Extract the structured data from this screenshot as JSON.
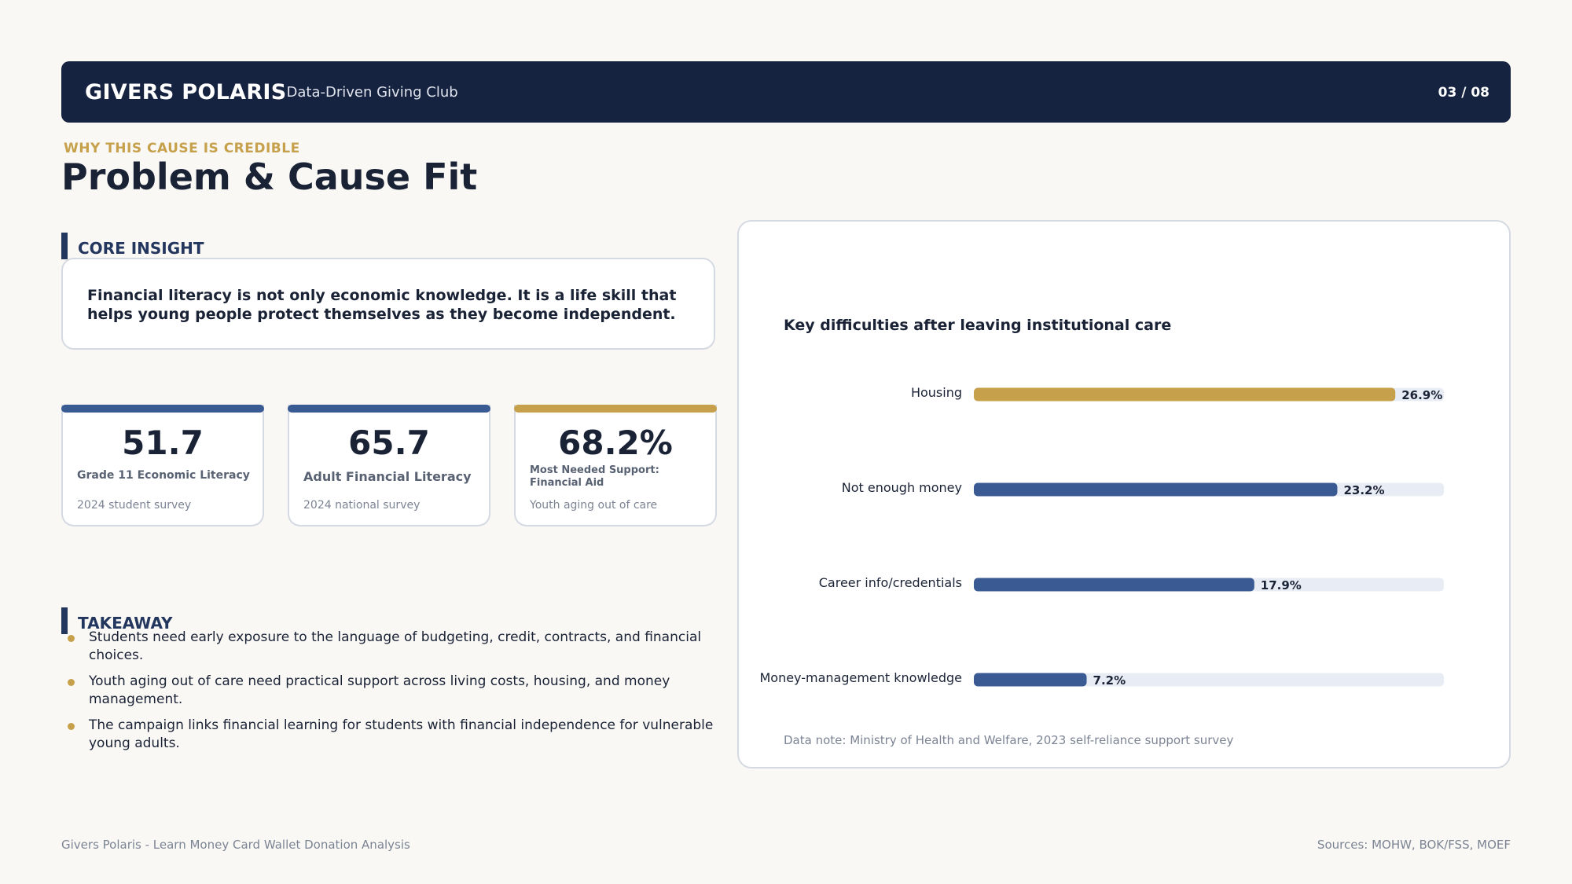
{
  "header": {
    "brand": "GIVERS POLARIS",
    "club": "Data-Driven Giving Club",
    "page": "03 / 08"
  },
  "eyebrow": "WHY THIS CAUSE IS CREDIBLE",
  "title": "Problem & Cause Fit",
  "core_insight": {
    "label": "CORE INSIGHT",
    "text": "Financial literacy is not only economic knowledge. It is a life skill that helps young people protect themselves as they become independent."
  },
  "kpis": [
    {
      "value": "51.7",
      "label": "Grade 11 Economic Literacy",
      "sub": "2024 student survey",
      "accent": "#3a5a94"
    },
    {
      "value": "65.7",
      "label": "Adult Financial Literacy",
      "sub": "2024 national survey",
      "accent": "#3a5a94"
    },
    {
      "value": "68.2%",
      "label": "Most Needed Support: Financial Aid",
      "sub": "Youth aging out of care",
      "accent": "#c6a04a"
    }
  ],
  "takeaway": {
    "label": "TAKEAWAY",
    "items": [
      "Students need early exposure to the language of budgeting, credit, contracts, and financial choices.",
      "Youth aging out of care need practical support across living costs, housing, and money management.",
      "The campaign links financial learning for students with financial independence for vulnerable young adults."
    ]
  },
  "chart_data": {
    "type": "bar",
    "orientation": "horizontal",
    "title": "Key difficulties after leaving institutional care",
    "categories": [
      "Housing",
      "Not enough money",
      "Career info/credentials",
      "Money-management knowledge"
    ],
    "values": [
      26.9,
      23.2,
      17.9,
      7.2
    ],
    "value_labels": [
      "26.9%",
      "23.2%",
      "17.9%",
      "7.2%"
    ],
    "xlim": [
      0,
      30
    ],
    "colors": {
      "highlight": "#c6a04a",
      "bar": "#3a5a94",
      "track": "#e8edf5"
    },
    "note": "Data note: Ministry of Health and Welfare, 2023 self-reliance support survey"
  },
  "footer": {
    "left": "Givers Polaris - Learn Money Card Wallet Donation Analysis",
    "right": "Sources: MOHW, BOK/FSS, MOEF"
  }
}
